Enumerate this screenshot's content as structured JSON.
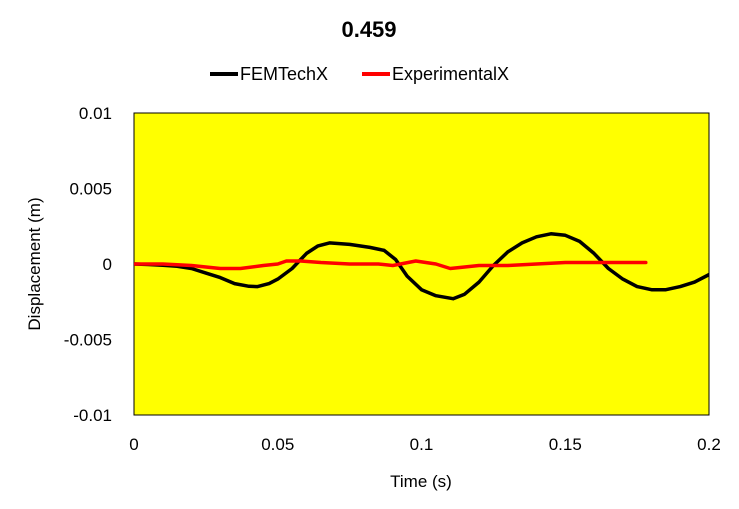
{
  "chart_data": {
    "type": "line",
    "title": "0.459",
    "xlabel": "Time (s)",
    "ylabel": "Displacement (m)",
    "xlim": [
      0,
      0.2
    ],
    "ylim": [
      -0.01,
      0.01
    ],
    "x_ticks": [
      "0",
      "0.05",
      "0.1",
      "0.15",
      "0.2"
    ],
    "y_ticks": [
      "0.01",
      "0.005",
      "0",
      "-0.005",
      "-0.01"
    ],
    "x_tick_values": [
      0,
      0.05,
      0.1,
      0.15,
      0.2
    ],
    "y_tick_values": [
      0.01,
      0.005,
      0,
      -0.005,
      -0.01
    ],
    "grid": false,
    "legend_position": "top",
    "plot_background": "#ffff00",
    "series": [
      {
        "name": "FEMTechX",
        "color": "#000000",
        "points": [
          [
            0,
            0
          ],
          [
            0.005,
            -3e-05
          ],
          [
            0.01,
            -8e-05
          ],
          [
            0.015,
            -0.00015
          ],
          [
            0.02,
            -0.0003
          ],
          [
            0.025,
            -0.0006
          ],
          [
            0.03,
            -0.0009
          ],
          [
            0.035,
            -0.0013
          ],
          [
            0.04,
            -0.00148
          ],
          [
            0.043,
            -0.0015
          ],
          [
            0.047,
            -0.0013
          ],
          [
            0.05,
            -0.001
          ],
          [
            0.055,
            -0.0003
          ],
          [
            0.06,
            0.0007
          ],
          [
            0.064,
            0.0012
          ],
          [
            0.068,
            0.0014
          ],
          [
            0.075,
            0.0013
          ],
          [
            0.082,
            0.0011
          ],
          [
            0.087,
            0.0009
          ],
          [
            0.091,
            0.0003
          ],
          [
            0.095,
            -0.0008
          ],
          [
            0.1,
            -0.0017
          ],
          [
            0.105,
            -0.0021
          ],
          [
            0.111,
            -0.0023
          ],
          [
            0.115,
            -0.002
          ],
          [
            0.12,
            -0.0012
          ],
          [
            0.125,
            -0.0001
          ],
          [
            0.13,
            0.0008
          ],
          [
            0.135,
            0.0014
          ],
          [
            0.14,
            0.0018
          ],
          [
            0.145,
            0.002
          ],
          [
            0.15,
            0.0019
          ],
          [
            0.155,
            0.0015
          ],
          [
            0.16,
            0.0007
          ],
          [
            0.165,
            -0.0003
          ],
          [
            0.17,
            -0.001
          ],
          [
            0.175,
            -0.0015
          ],
          [
            0.18,
            -0.0017
          ],
          [
            0.185,
            -0.0017
          ],
          [
            0.19,
            -0.0015
          ],
          [
            0.195,
            -0.0012
          ],
          [
            0.2,
            -0.0007
          ]
        ]
      },
      {
        "name": "ExperimentalX",
        "color": "#ff0000",
        "points": [
          [
            0,
            0
          ],
          [
            0.01,
            0
          ],
          [
            0.02,
            -0.0001
          ],
          [
            0.03,
            -0.0003
          ],
          [
            0.037,
            -0.0003
          ],
          [
            0.045,
            -0.0001
          ],
          [
            0.05,
            0
          ],
          [
            0.053,
            0.0002
          ],
          [
            0.058,
            0.0002
          ],
          [
            0.065,
            0.0001
          ],
          [
            0.075,
            0
          ],
          [
            0.085,
            0
          ],
          [
            0.09,
            -0.0001
          ],
          [
            0.098,
            0.0002
          ],
          [
            0.105,
            0
          ],
          [
            0.11,
            -0.0003
          ],
          [
            0.12,
            -0.0001
          ],
          [
            0.13,
            -0.0001
          ],
          [
            0.14,
            0
          ],
          [
            0.15,
            0.0001
          ],
          [
            0.16,
            0.0001
          ],
          [
            0.17,
            0.0001
          ],
          [
            0.178,
            0.0001
          ]
        ]
      }
    ]
  }
}
